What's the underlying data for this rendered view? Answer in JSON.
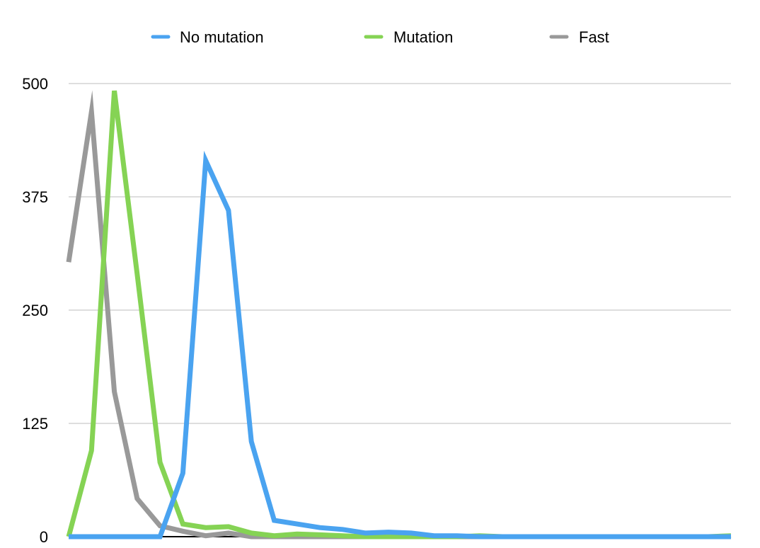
{
  "chart_data": {
    "type": "line",
    "title": "",
    "xlabel": "",
    "ylabel": "",
    "ylim": [
      0,
      500
    ],
    "yticks": [
      0,
      125,
      250,
      375,
      500
    ],
    "grid": true,
    "legend_position": "top-center",
    "x": [
      1,
      2,
      3,
      4,
      5,
      6,
      7,
      8,
      9,
      10,
      11,
      12,
      13,
      14,
      15,
      16,
      17,
      18,
      19,
      20,
      21,
      22,
      23,
      24,
      25,
      26,
      27,
      28,
      29,
      30
    ],
    "series": [
      {
        "name": "No mutation",
        "color": "#4aa3f0",
        "values": [
          0,
          0,
          0,
          0,
          0,
          70,
          415,
          360,
          105,
          18,
          14,
          10,
          8,
          4,
          5,
          4,
          1,
          1,
          0,
          0,
          0,
          0,
          0,
          0,
          0,
          0,
          0,
          0,
          0,
          0
        ]
      },
      {
        "name": "Mutation",
        "color": "#85d354",
        "values": [
          0,
          95,
          492,
          290,
          82,
          14,
          10,
          11,
          4,
          1,
          3,
          2,
          1,
          0,
          0,
          0,
          0,
          0,
          1,
          0,
          0,
          0,
          0,
          0,
          0,
          0,
          0,
          0,
          0,
          1
        ]
      },
      {
        "name": "Fast",
        "color": "#999999",
        "values": [
          303,
          469,
          160,
          42,
          12,
          6,
          1,
          4,
          0,
          0,
          0,
          0,
          0,
          0,
          0,
          0,
          0,
          0,
          0,
          0,
          0,
          0,
          0,
          0,
          0,
          0,
          0,
          0,
          0,
          0
        ]
      }
    ]
  }
}
